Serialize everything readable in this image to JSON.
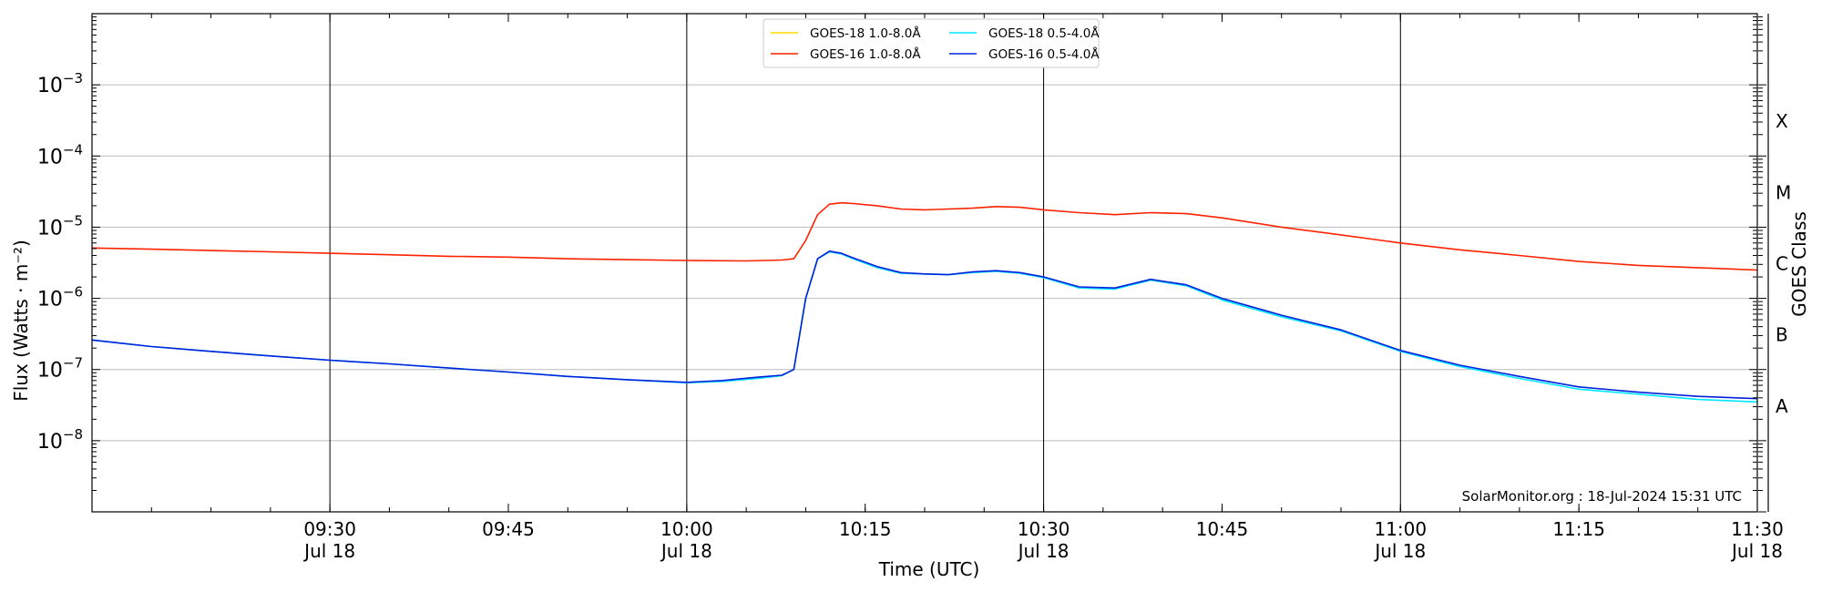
{
  "chart_data": {
    "type": "line",
    "title": "",
    "xlabel": "Time (UTC)",
    "ylabel": "Flux (Watts · m⁻²)",
    "ylabel_right": "GOES Class",
    "yscale": "log",
    "ylim": [
      1e-09,
      0.01
    ],
    "xlim": [
      "09:10",
      "11:30"
    ],
    "x_ticks": [
      {
        "t": "09:30",
        "label": "09:30",
        "sub": "Jul 18"
      },
      {
        "t": "09:45",
        "label": "09:45",
        "sub": ""
      },
      {
        "t": "10:00",
        "label": "10:00",
        "sub": "Jul 18"
      },
      {
        "t": "10:15",
        "label": "10:15",
        "sub": ""
      },
      {
        "t": "10:30",
        "label": "10:30",
        "sub": "Jul 18"
      },
      {
        "t": "10:45",
        "label": "10:45",
        "sub": ""
      },
      {
        "t": "11:00",
        "label": "11:00",
        "sub": "Jul 18"
      },
      {
        "t": "11:15",
        "label": "11:15",
        "sub": ""
      },
      {
        "t": "11:30",
        "label": "11:30",
        "sub": "Jul 18"
      }
    ],
    "vertical_lines": [
      "09:30",
      "10:00",
      "10:30",
      "11:00"
    ],
    "y_ticks": [
      {
        "exp": -8,
        "label": "10"
      },
      {
        "exp": -7,
        "label": "10"
      },
      {
        "exp": -6,
        "label": "10"
      },
      {
        "exp": -5,
        "label": "10"
      },
      {
        "exp": -4,
        "label": "10"
      },
      {
        "exp": -3,
        "label": "10"
      }
    ],
    "goes_classes": [
      {
        "label": "A",
        "exp": -7.5
      },
      {
        "label": "B",
        "exp": -6.5
      },
      {
        "label": "C",
        "exp": -5.5
      },
      {
        "label": "M",
        "exp": -4.5
      },
      {
        "label": "X",
        "exp": -3.5
      }
    ],
    "grid": "horizontal",
    "legend": "top-center",
    "annotation": "SolarMonitor.org : 18-Jul-2024 15:31 UTC",
    "series": [
      {
        "name": "GOES-18 1.0-8.0Å",
        "color": "#ffd700",
        "x": [],
        "values": []
      },
      {
        "name": "GOES-16 1.0-8.0Å",
        "color": "#ff2200",
        "x": [
          "09:10",
          "09:15",
          "09:20",
          "09:25",
          "09:30",
          "09:35",
          "09:40",
          "09:45",
          "09:50",
          "09:55",
          "10:00",
          "10:05",
          "10:08",
          "10:09",
          "10:10",
          "10:11",
          "10:12",
          "10:13",
          "10:14",
          "10:16",
          "10:18",
          "10:20",
          "10:22",
          "10:24",
          "10:26",
          "10:28",
          "10:30",
          "10:33",
          "10:36",
          "10:39",
          "10:42",
          "10:45",
          "10:50",
          "10:55",
          "11:00",
          "11:05",
          "11:10",
          "11:15",
          "11:20",
          "11:25",
          "11:30"
        ],
        "values": [
          5.1e-06,
          4.9e-06,
          4.7e-06,
          4.5e-06,
          4.3e-06,
          4.1e-06,
          3.9e-06,
          3.8e-06,
          3.6e-06,
          3.5e-06,
          3.4e-06,
          3.35e-06,
          3.45e-06,
          3.6e-06,
          6.5e-06,
          1.5e-05,
          2.1e-05,
          2.2e-05,
          2.15e-05,
          2e-05,
          1.8e-05,
          1.75e-05,
          1.8e-05,
          1.85e-05,
          1.95e-05,
          1.9e-05,
          1.75e-05,
          1.6e-05,
          1.5e-05,
          1.6e-05,
          1.55e-05,
          1.35e-05,
          1e-05,
          7.8e-06,
          6e-06,
          4.8e-06,
          4e-06,
          3.3e-06,
          2.9e-06,
          2.7e-06,
          2.5e-06
        ]
      },
      {
        "name": "GOES-18 0.5-4.0Å",
        "color": "#00e5ff",
        "x": [
          "09:10",
          "09:15",
          "09:20",
          "09:25",
          "09:30",
          "09:35",
          "09:40",
          "09:45",
          "09:50",
          "09:55",
          "10:00",
          "10:03",
          "10:06",
          "10:08",
          "10:09",
          "10:10",
          "10:11",
          "10:12",
          "10:13",
          "10:14",
          "10:16",
          "10:18",
          "10:20",
          "10:22",
          "10:24",
          "10:26",
          "10:28",
          "10:30",
          "10:33",
          "10:36",
          "10:39",
          "10:42",
          "10:45",
          "10:50",
          "10:55",
          "11:00",
          "11:05",
          "11:10",
          "11:15",
          "11:20",
          "11:25",
          "11:30"
        ],
        "values": [
          2.6e-07,
          2.1e-07,
          1.8e-07,
          1.55e-07,
          1.35e-07,
          1.2e-07,
          1.05e-07,
          9.2e-08,
          8e-08,
          7.2e-08,
          6.5e-08,
          6.8e-08,
          7.5e-08,
          8.2e-08,
          1e-07,
          1e-06,
          3.6e-06,
          4.5e-06,
          4.2e-06,
          3.6e-06,
          2.7e-06,
          2.25e-06,
          2.2e-06,
          2.15e-06,
          2.3e-06,
          2.4e-06,
          2.25e-06,
          1.95e-06,
          1.4e-06,
          1.35e-06,
          1.8e-06,
          1.5e-06,
          9.5e-07,
          5.5e-07,
          3.5e-07,
          1.8e-07,
          1.1e-07,
          7.5e-08,
          5.3e-08,
          4.5e-08,
          3.8e-08,
          3.5e-08
        ]
      },
      {
        "name": "GOES-16 0.5-4.0Å",
        "color": "#0022dd",
        "x": [
          "09:10",
          "09:15",
          "09:20",
          "09:25",
          "09:30",
          "09:35",
          "09:40",
          "09:45",
          "09:50",
          "09:55",
          "10:00",
          "10:03",
          "10:06",
          "10:08",
          "10:09",
          "10:10",
          "10:11",
          "10:12",
          "10:13",
          "10:14",
          "10:16",
          "10:18",
          "10:20",
          "10:22",
          "10:24",
          "10:26",
          "10:28",
          "10:30",
          "10:33",
          "10:36",
          "10:39",
          "10:42",
          "10:45",
          "10:50",
          "10:55",
          "11:00",
          "11:05",
          "11:10",
          "11:15",
          "11:20",
          "11:25",
          "11:30"
        ],
        "values": [
          2.6e-07,
          2.1e-07,
          1.8e-07,
          1.55e-07,
          1.35e-07,
          1.2e-07,
          1.05e-07,
          9.2e-08,
          8e-08,
          7.2e-08,
          6.6e-08,
          7e-08,
          7.8e-08,
          8.3e-08,
          1e-07,
          1e-06,
          3.6e-06,
          4.6e-06,
          4.3e-06,
          3.7e-06,
          2.8e-06,
          2.3e-06,
          2.2e-06,
          2.15e-06,
          2.35e-06,
          2.45e-06,
          2.3e-06,
          2e-06,
          1.45e-06,
          1.4e-06,
          1.85e-06,
          1.55e-06,
          1e-06,
          5.8e-07,
          3.6e-07,
          1.85e-07,
          1.15e-07,
          8e-08,
          5.7e-08,
          4.8e-08,
          4.2e-08,
          3.9e-08
        ]
      }
    ]
  }
}
